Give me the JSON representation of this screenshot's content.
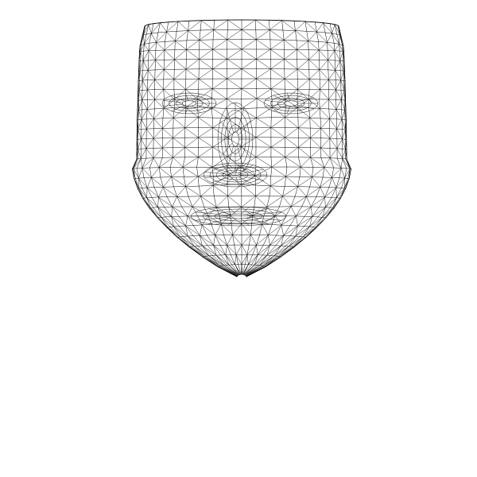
{
  "figure": {
    "subject": "face-mesh-wireframe",
    "background_color": "#ffffff",
    "line_color": "#000000",
    "title": ""
  }
}
